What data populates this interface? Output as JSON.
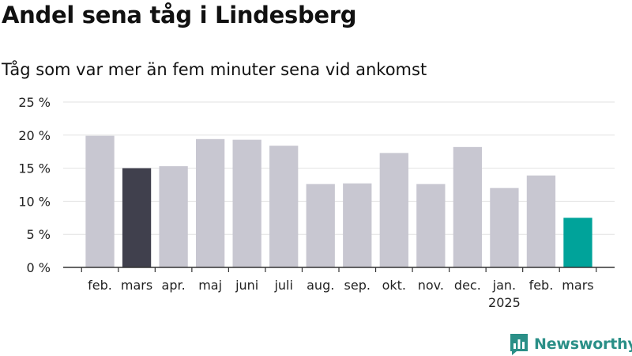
{
  "header": {
    "title": "Andel sena tåg i Lindesberg",
    "subtitle": "Tåg som var mer än fem minuter sena vid ankomst"
  },
  "brand": {
    "name": "Newsworthy",
    "icon": "newsworthy-logo-icon",
    "color": "#2a8f87"
  },
  "colors": {
    "default_bar": "#c8c7d1",
    "highlight_previous": "#40404d",
    "highlight_current": "#00a39a",
    "grid": "#e2e2e2",
    "axis": "#333333"
  },
  "chart_data": {
    "type": "bar",
    "categories": [
      "feb.",
      "mars",
      "apr.",
      "maj",
      "juni",
      "juli",
      "aug.",
      "sep.",
      "okt.",
      "nov.",
      "dec.",
      "jan.",
      "feb.",
      "mars"
    ],
    "year_label": {
      "index": 11,
      "text": "2025"
    },
    "values": [
      19.9,
      15.0,
      15.3,
      19.4,
      19.3,
      18.4,
      12.6,
      12.7,
      17.3,
      12.6,
      18.2,
      12.0,
      13.9,
      7.5
    ],
    "bar_roles": [
      "default",
      "previous",
      "default",
      "default",
      "default",
      "default",
      "default",
      "default",
      "default",
      "default",
      "default",
      "default",
      "default",
      "current"
    ],
    "yticks": [
      0,
      5,
      10,
      15,
      20,
      25
    ],
    "ytick_labels": [
      "0 %",
      "5 %",
      "10 %",
      "15 %",
      "20 %",
      "25 %"
    ],
    "ylim": [
      0,
      25
    ],
    "grid": true
  }
}
